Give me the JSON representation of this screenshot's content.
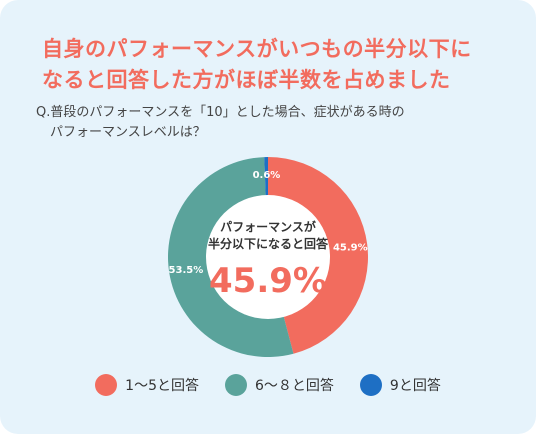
{
  "title_line1": "自身のパフォーマンスがいつもの半分以下に",
  "title_line2": "なると回答した方がほぼ半数を占めました",
  "question_line1": "Q.普段のパフォーマンスを「10」とした場合、症状がある時の",
  "question_line2": "パフォーマンスレベルは？",
  "center_caption_line1": "パフォーマンスが",
  "center_caption_line2": "半分以下になると回答",
  "center_value": "45.9%",
  "colors": {
    "accent": "#f26c5e",
    "teal": "#5aa39b",
    "blue": "#1e6fc4",
    "background": "#e6f3fb"
  },
  "chart_data": {
    "type": "pie",
    "categories": [
      "1〜5と回答",
      "6〜８と回答",
      "9と回答"
    ],
    "values": [
      45.9,
      53.5,
      0.6
    ],
    "value_labels": [
      "45.9%",
      "53.5%",
      "0.6%"
    ],
    "colors": [
      "#f26c5e",
      "#5aa39b",
      "#1e6fc4"
    ],
    "legend": "bottom"
  }
}
